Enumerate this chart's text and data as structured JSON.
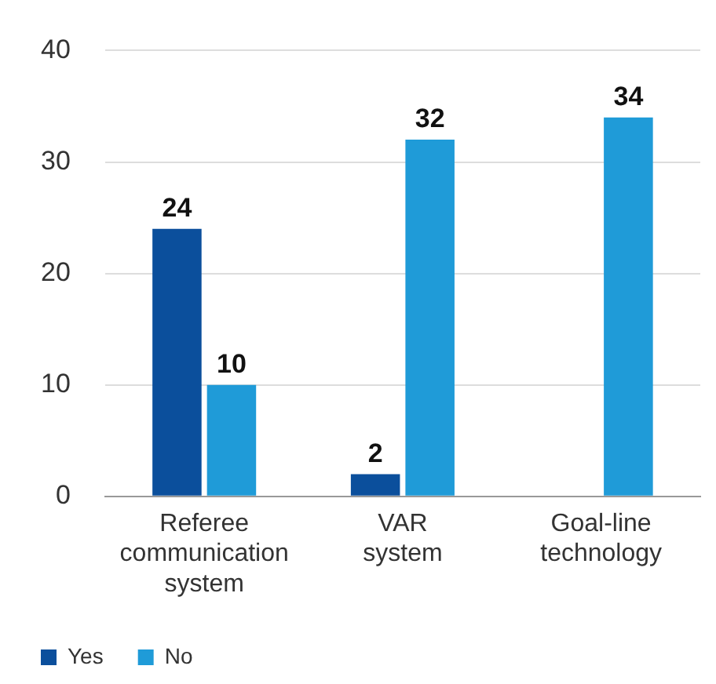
{
  "chart_data": {
    "type": "bar",
    "categories": [
      "Referee communication system",
      "VAR system",
      "Goal-line technology"
    ],
    "series": [
      {
        "name": "Yes",
        "color": "#0b4f9c",
        "values": [
          24,
          2,
          null
        ]
      },
      {
        "name": "No",
        "color": "#1f9bd8",
        "values": [
          10,
          32,
          34
        ]
      }
    ],
    "ylim": [
      0,
      40
    ],
    "yticks": [
      0,
      10,
      20,
      30,
      40
    ],
    "grid": "y",
    "legend": "bottom left",
    "data_labels": true
  }
}
